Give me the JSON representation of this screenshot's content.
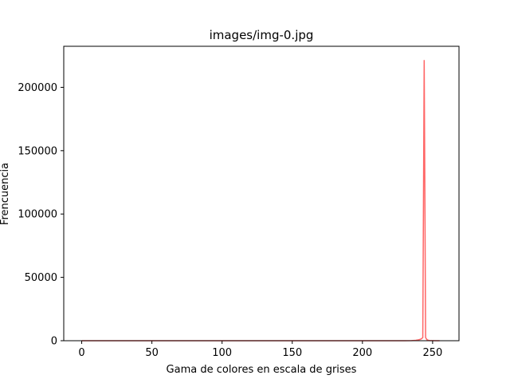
{
  "chart_data": {
    "type": "line",
    "title": "images/img-0.jpg",
    "xlabel": "Gama de colores en escala de grises",
    "ylabel": "Frencuencia",
    "xlim": [
      -12.8,
      268.8
    ],
    "ylim": [
      0,
      232400
    ],
    "xticks": [
      0,
      50,
      100,
      150,
      200,
      250
    ],
    "yticks": [
      0,
      50000,
      100000,
      150000,
      200000
    ],
    "grid": false,
    "line_color": "#ff0000",
    "series": [
      {
        "x": [
          0,
          40,
          80,
          120,
          160,
          200,
          230,
          235,
          238,
          240,
          241,
          242,
          243,
          244,
          245,
          246,
          247,
          248,
          250,
          252,
          255
        ],
        "y": [
          0,
          0,
          0,
          0,
          0,
          0,
          0,
          100,
          300,
          700,
          1000,
          1500,
          2500,
          221500,
          2500,
          800,
          300,
          100,
          50,
          20,
          0
        ]
      }
    ]
  }
}
